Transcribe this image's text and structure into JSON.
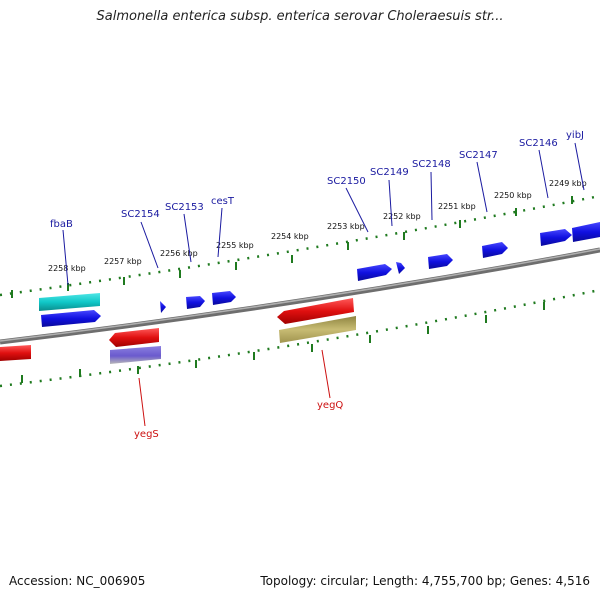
{
  "header": {
    "title": "Salmonella enterica subsp. enterica serovar Choleraesuis str..."
  },
  "footer": {
    "accession": "Accession: NC_006905",
    "summary": "Topology: circular; Length: 4,755,700 bp; Genes: 4,516"
  },
  "axis": {
    "labels": [
      "2258 kbp",
      "2257 kbp",
      "2256 kbp",
      "2255 kbp",
      "2254 kbp",
      "2253 kbp",
      "2252 kbp",
      "2251 kbp",
      "2250 kbp",
      "2249 kbp"
    ]
  },
  "genes_forward": [
    "fbaB",
    "SC2154",
    "SC2153",
    "cesT",
    "SC2150",
    "SC2149",
    "SC2148",
    "SC2147",
    "SC2146",
    "yibJ"
  ],
  "genes_reverse": [
    "yegS",
    "yegQ"
  ],
  "colors": {
    "backbone": "#808080",
    "tick": "#1f7a1f",
    "forward_gene": "#1010e0",
    "reverse_gene": "#e01010",
    "cyan_feature": "#10c8c8",
    "violet_feature": "#6a5acd",
    "olive_feature": "#b4a857"
  }
}
